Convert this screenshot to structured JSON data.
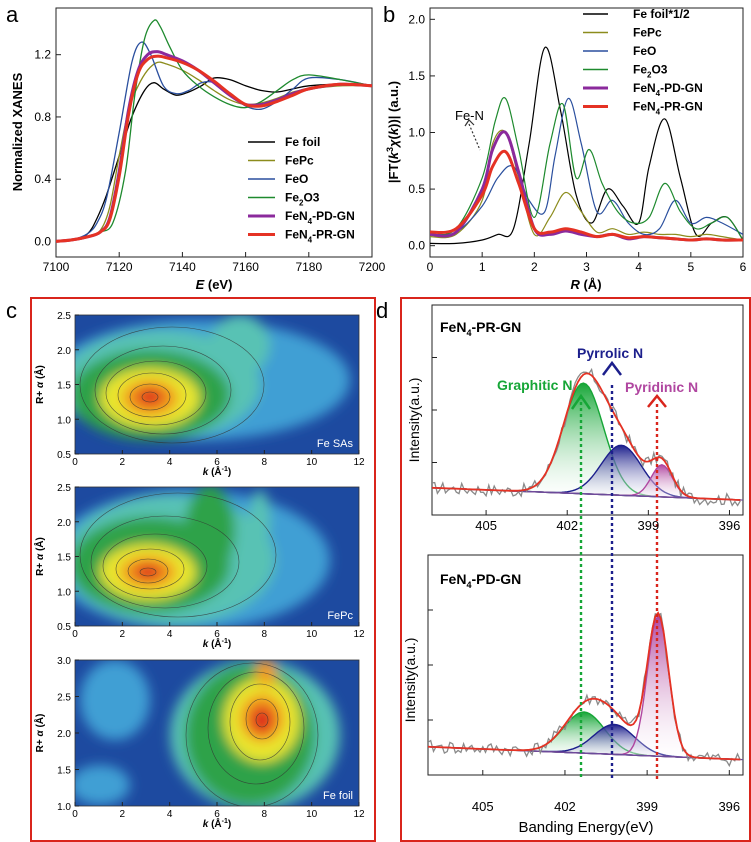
{
  "panels": {
    "a": {
      "letter": "a",
      "xlabel_italic": "E",
      "xlabel_rest": " (eV)",
      "ylabel": "Normalized XANES",
      "xticks": [
        "7100",
        "7120",
        "7140",
        "7160",
        "7180",
        "7200"
      ],
      "yticks": [
        "0.0",
        "0.4",
        "0.8",
        "1.2"
      ],
      "legend": [
        {
          "label": "Fe foil",
          "color": "#000000"
        },
        {
          "label": "FePc",
          "color": "#8c8c1c"
        },
        {
          "label": "FeO",
          "color": "#2a4f9e"
        },
        {
          "label": "Fe2O3",
          "color": "#1e8a2e"
        },
        {
          "label": "FeN4-PD-GN",
          "color": "#8b2a9c"
        },
        {
          "label": "FeN4-PR-GN",
          "color": "#e53224"
        }
      ]
    },
    "b": {
      "letter": "b",
      "xlabel_italic": "R",
      "xlabel_rest": " (Å)",
      "ylabel": "|FT(k3χ(k))| (a.u.)",
      "xticks": [
        "0",
        "1",
        "2",
        "3",
        "4",
        "5",
        "6"
      ],
      "yticks": [
        "0.0",
        "0.5",
        "1.0",
        "1.5",
        "2.0"
      ],
      "annotation": "Fe-N",
      "legend": [
        {
          "label": "Fe foil*1/2",
          "color": "#000000"
        },
        {
          "label": "FePc",
          "color": "#8c8c1c"
        },
        {
          "label": "FeO",
          "color": "#2a4f9e"
        },
        {
          "label": "Fe2O3",
          "color": "#1e8a2e"
        },
        {
          "label": "FeN4-PD-GN",
          "color": "#8b2a9c"
        },
        {
          "label": "FeN4-PR-GN",
          "color": "#e53224"
        }
      ]
    },
    "c": {
      "letter": "c",
      "subplots": [
        {
          "label": "Fe SAs",
          "yticks": [
            "0.5",
            "1.0",
            "1.5",
            "2.0",
            "2.5"
          ],
          "xticks": [
            "0",
            "2",
            "4",
            "6",
            "8",
            "10",
            "12"
          ]
        },
        {
          "label": "FePc",
          "yticks": [
            "0.5",
            "1.0",
            "1.5",
            "2.0",
            "2.5"
          ],
          "xticks": [
            "0",
            "2",
            "4",
            "6",
            "8",
            "10",
            "12"
          ]
        },
        {
          "label": "Fe foil",
          "yticks": [
            "1.0",
            "1.5",
            "2.0",
            "2.5",
            "3.0"
          ],
          "xticks": [
            "0",
            "2",
            "4",
            "6",
            "8",
            "10",
            "12"
          ]
        }
      ],
      "ylabel": "R+ α (Å)",
      "xlabel": "k (Å-1)"
    },
    "d": {
      "letter": "d",
      "top_title": "FeN4-PR-GN",
      "bottom_title": "FeN4-PD-GN",
      "peaks": {
        "graphitic": "Graphitic N",
        "pyrrolic": "Pyrrolic N",
        "pyridinic": "Pyridinic N"
      },
      "ylabel": "Intensity(a.u.)",
      "xlabel": "Banding Energy(eV)",
      "xticks": [
        "405",
        "402",
        "399",
        "396"
      ]
    }
  },
  "chart_data": [
    {
      "type": "line",
      "title": "",
      "xlabel": "E (eV)",
      "ylabel": "Normalized XANES",
      "xlim": [
        7100,
        7200
      ],
      "ylim": [
        -0.1,
        1.5
      ],
      "series": [
        {
          "name": "Fe foil",
          "x": [
            7100,
            7105,
            7110,
            7113,
            7116,
            7120,
            7124,
            7128,
            7131,
            7134,
            7138,
            7142,
            7146,
            7150,
            7155,
            7160,
            7165,
            7170,
            7175,
            7180,
            7190,
            7200
          ],
          "y": [
            0.0,
            0.01,
            0.05,
            0.15,
            0.3,
            0.55,
            0.8,
            0.97,
            1.02,
            0.98,
            0.94,
            0.96,
            1.0,
            1.05,
            1.04,
            1.0,
            0.97,
            0.96,
            0.98,
            1.0,
            1.01,
            1.0
          ]
        },
        {
          "name": "FePc",
          "x": [
            7100,
            7105,
            7110,
            7114,
            7117,
            7120,
            7123,
            7126,
            7129,
            7132,
            7135,
            7140,
            7145,
            7150,
            7155,
            7160,
            7165,
            7170,
            7175,
            7180,
            7190,
            7200
          ],
          "y": [
            0.0,
            0.01,
            0.03,
            0.07,
            0.22,
            0.55,
            0.85,
            1.0,
            1.1,
            1.15,
            1.14,
            1.1,
            1.04,
            0.97,
            0.91,
            0.88,
            0.89,
            0.92,
            0.96,
            0.98,
            1.0,
            1.0
          ]
        },
        {
          "name": "FeO",
          "x": [
            7100,
            7105,
            7110,
            7113,
            7116,
            7120,
            7124,
            7127,
            7130,
            7134,
            7138,
            7142,
            7146,
            7150,
            7155,
            7160,
            7165,
            7170,
            7175,
            7180,
            7190,
            7200
          ],
          "y": [
            0.0,
            0.01,
            0.05,
            0.12,
            0.28,
            0.7,
            1.15,
            1.28,
            1.2,
            1.0,
            0.95,
            0.97,
            1.02,
            1.02,
            0.95,
            0.87,
            0.85,
            0.9,
            0.98,
            1.05,
            1.04,
            1.0
          ]
        },
        {
          "name": "Fe2O3",
          "x": [
            7100,
            7105,
            7110,
            7114,
            7118,
            7122,
            7125,
            7128,
            7131,
            7133,
            7136,
            7140,
            7145,
            7150,
            7155,
            7160,
            7165,
            7170,
            7175,
            7180,
            7190,
            7200
          ],
          "y": [
            0.0,
            0.01,
            0.03,
            0.06,
            0.12,
            0.45,
            0.95,
            1.3,
            1.42,
            1.38,
            1.25,
            1.1,
            1.0,
            0.93,
            0.88,
            0.86,
            0.9,
            0.97,
            1.04,
            1.07,
            1.04,
            1.0
          ]
        },
        {
          "name": "FeN4-PD-GN",
          "x": [
            7100,
            7105,
            7110,
            7114,
            7117,
            7120,
            7123,
            7126,
            7129,
            7132,
            7135,
            7140,
            7145,
            7150,
            7155,
            7160,
            7165,
            7170,
            7175,
            7180,
            7190,
            7200
          ],
          "y": [
            0.0,
            0.01,
            0.03,
            0.06,
            0.15,
            0.45,
            0.85,
            1.1,
            1.2,
            1.22,
            1.2,
            1.16,
            1.1,
            1.02,
            0.94,
            0.88,
            0.88,
            0.91,
            0.95,
            0.98,
            1.01,
            1.0
          ]
        },
        {
          "name": "FeN4-PR-GN",
          "x": [
            7100,
            7105,
            7110,
            7114,
            7117,
            7120,
            7123,
            7126,
            7129,
            7132,
            7135,
            7140,
            7145,
            7150,
            7155,
            7160,
            7165,
            7170,
            7175,
            7180,
            7190,
            7200
          ],
          "y": [
            0.0,
            0.01,
            0.03,
            0.06,
            0.14,
            0.42,
            0.82,
            1.08,
            1.17,
            1.19,
            1.18,
            1.15,
            1.1,
            1.03,
            0.95,
            0.88,
            0.87,
            0.9,
            0.94,
            0.98,
            1.01,
            1.0
          ]
        }
      ]
    },
    {
      "type": "line",
      "title": "",
      "xlabel": "R (Å)",
      "ylabel": "|FT(k3χ(k))| (a.u.)",
      "xlim": [
        0,
        6
      ],
      "ylim": [
        -0.1,
        2.1
      ],
      "series": [
        {
          "name": "Fe foil*1/2",
          "x": [
            0,
            0.5,
            1.0,
            1.3,
            1.6,
            1.9,
            2.2,
            2.5,
            2.8,
            3.1,
            3.4,
            3.7,
            4.0,
            4.2,
            4.5,
            4.8,
            5.1,
            5.4,
            5.7,
            6.0
          ],
          "y": [
            0.02,
            0.02,
            0.05,
            0.1,
            0.15,
            0.9,
            1.75,
            1.2,
            0.45,
            0.2,
            0.5,
            0.35,
            0.2,
            0.7,
            1.12,
            0.6,
            0.1,
            0.2,
            0.25,
            0.05
          ]
        },
        {
          "name": "FePc",
          "x": [
            0,
            0.5,
            1.0,
            1.2,
            1.45,
            1.7,
            2.0,
            2.3,
            2.6,
            2.9,
            3.2,
            3.5,
            3.8,
            4.1,
            4.4,
            4.7,
            5.0,
            5.3,
            5.6,
            6.0
          ],
          "y": [
            0.08,
            0.1,
            0.4,
            0.9,
            1.0,
            0.6,
            0.1,
            0.25,
            0.47,
            0.3,
            0.12,
            0.15,
            0.1,
            0.12,
            0.1,
            0.1,
            0.08,
            0.1,
            0.08,
            0.05
          ]
        },
        {
          "name": "FeO",
          "x": [
            0,
            0.5,
            1.0,
            1.3,
            1.6,
            1.9,
            2.2,
            2.4,
            2.65,
            2.9,
            3.2,
            3.5,
            3.8,
            4.1,
            4.4,
            4.7,
            5.0,
            5.3,
            5.6,
            6.0
          ],
          "y": [
            0.1,
            0.12,
            0.35,
            0.6,
            0.7,
            0.4,
            0.3,
            0.8,
            1.3,
            0.9,
            0.3,
            0.4,
            0.2,
            0.1,
            0.15,
            0.4,
            0.2,
            0.25,
            0.2,
            0.1
          ]
        },
        {
          "name": "Fe2O3",
          "x": [
            0,
            0.5,
            1.0,
            1.25,
            1.45,
            1.7,
            2.0,
            2.3,
            2.55,
            2.8,
            3.05,
            3.3,
            3.6,
            3.9,
            4.2,
            4.5,
            4.8,
            5.1,
            5.4,
            5.7,
            6.0
          ],
          "y": [
            0.1,
            0.15,
            0.6,
            1.1,
            1.3,
            0.85,
            0.25,
            0.9,
            1.25,
            0.6,
            0.85,
            0.55,
            0.3,
            0.2,
            0.25,
            0.55,
            0.3,
            0.15,
            0.2,
            0.25,
            0.05
          ]
        },
        {
          "name": "FeN4-PD-GN",
          "x": [
            0,
            0.5,
            1.0,
            1.2,
            1.45,
            1.7,
            2.0,
            2.3,
            2.6,
            2.9,
            3.2,
            3.5,
            3.8,
            4.1,
            4.4,
            4.7,
            5.0,
            5.3,
            5.6,
            6.0
          ],
          "y": [
            0.1,
            0.12,
            0.5,
            0.85,
            1.0,
            0.65,
            0.15,
            0.1,
            0.13,
            0.1,
            0.08,
            0.1,
            0.06,
            0.08,
            0.07,
            0.06,
            0.05,
            0.06,
            0.05,
            0.05
          ]
        },
        {
          "name": "FeN4-PR-GN",
          "x": [
            0,
            0.5,
            1.0,
            1.2,
            1.45,
            1.7,
            2.0,
            2.3,
            2.6,
            2.9,
            3.2,
            3.5,
            3.8,
            4.1,
            4.4,
            4.7,
            5.0,
            5.3,
            5.6,
            6.0
          ],
          "y": [
            0.12,
            0.15,
            0.45,
            0.7,
            0.83,
            0.55,
            0.15,
            0.12,
            0.15,
            0.12,
            0.08,
            0.1,
            0.07,
            0.08,
            0.07,
            0.06,
            0.05,
            0.06,
            0.05,
            0.05
          ]
        }
      ]
    },
    {
      "type": "heatmap",
      "title": "Fe SAs",
      "xlabel": "k (Å-1)",
      "ylabel": "R+ α (Å)",
      "xlim": [
        0,
        12
      ],
      "ylim": [
        0.5,
        2.5
      ],
      "peaks": [
        {
          "k": 3.3,
          "R": 1.32,
          "intensity": 1.0
        }
      ]
    },
    {
      "type": "heatmap",
      "title": "FePc",
      "xlabel": "k (Å-1)",
      "ylabel": "R+ α (Å)",
      "xlim": [
        0,
        12
      ],
      "ylim": [
        0.5,
        2.5
      ],
      "peaks": [
        {
          "k": 3.2,
          "R": 1.25,
          "intensity": 1.0
        }
      ]
    },
    {
      "type": "heatmap",
      "title": "Fe foil",
      "xlabel": "k (Å-1)",
      "ylabel": "R+ α (Å)",
      "xlim": [
        0,
        12
      ],
      "ylim": [
        1.0,
        3.0
      ],
      "peaks": [
        {
          "k": 7.8,
          "R": 2.2,
          "intensity": 1.0
        }
      ]
    },
    {
      "type": "line",
      "title": "FeN4-PR-GN",
      "xlabel": "Banding Energy(eV)",
      "ylabel": "Intensity(a.u.)",
      "xlim": [
        407,
        395.5
      ],
      "components": [
        {
          "name": "Graphitic N",
          "center": 401.4,
          "height": 0.62
        },
        {
          "name": "Pyrrolic N",
          "center": 400.0,
          "height": 0.28
        },
        {
          "name": "Pyridinic N",
          "center": 398.5,
          "height": 0.18
        }
      ]
    },
    {
      "type": "line",
      "title": "FeN4-PD-GN",
      "xlabel": "Banding Energy(eV)",
      "ylabel": "Intensity(a.u.)",
      "xlim": [
        407,
        395.5
      ],
      "components": [
        {
          "name": "Graphitic N",
          "center": 401.3,
          "height": 0.22
        },
        {
          "name": "Pyrrolic N",
          "center": 400.2,
          "height": 0.16
        },
        {
          "name": "Pyridinic N",
          "center": 398.6,
          "height": 0.75
        }
      ]
    }
  ]
}
